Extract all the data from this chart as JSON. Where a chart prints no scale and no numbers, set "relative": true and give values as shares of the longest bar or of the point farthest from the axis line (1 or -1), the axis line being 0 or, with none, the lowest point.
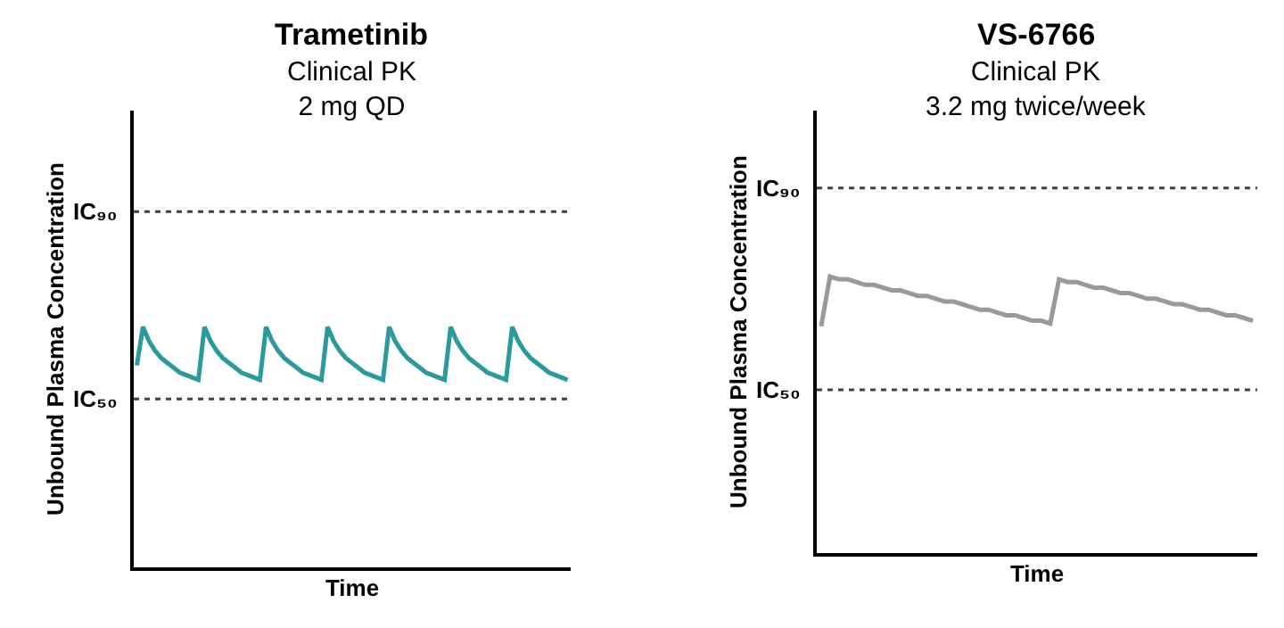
{
  "chart_data": [
    {
      "type": "line",
      "title": "Trametinib",
      "subtitle": "Clinical PK\n2 mg QD",
      "xlabel": "Time",
      "ylabel": "Unbound Plasma Concentration",
      "relative": true,
      "tick_labels": false,
      "marker": "none",
      "line_style": "solid",
      "categories": [
        null,
        null,
        null,
        null,
        null,
        null,
        null,
        null,
        null,
        null,
        null,
        null,
        null,
        null,
        null,
        null,
        null,
        null,
        null,
        null,
        null,
        null,
        null,
        null,
        null,
        null,
        null,
        null,
        null,
        null,
        null,
        null,
        null,
        null,
        null,
        null,
        null,
        null,
        null,
        null,
        null,
        null,
        null,
        null,
        null,
        null,
        null,
        null,
        null,
        null,
        null,
        null,
        null,
        null,
        null,
        null,
        null,
        null,
        null,
        null,
        null,
        null,
        null,
        null,
        null,
        null,
        null,
        null,
        null,
        null,
        null
      ],
      "series": [
        {
          "color": "#2a9a9e",
          "values": [
            0.84,
            1.0,
            0.94,
            0.9,
            0.87,
            0.85,
            0.83,
            0.81,
            0.8,
            0.79,
            0.78,
            1.0,
            0.94,
            0.9,
            0.87,
            0.85,
            0.83,
            0.81,
            0.8,
            0.79,
            0.78,
            1.0,
            0.94,
            0.9,
            0.87,
            0.85,
            0.83,
            0.81,
            0.8,
            0.79,
            0.78,
            1.0,
            0.94,
            0.9,
            0.87,
            0.85,
            0.83,
            0.81,
            0.8,
            0.79,
            0.78,
            1.0,
            0.94,
            0.9,
            0.87,
            0.85,
            0.83,
            0.81,
            0.8,
            0.79,
            0.78,
            1.0,
            0.94,
            0.9,
            0.87,
            0.85,
            0.83,
            0.81,
            0.8,
            0.79,
            0.78,
            1.0,
            0.94,
            0.9,
            0.87,
            0.85,
            0.83,
            0.81,
            0.8,
            0.79,
            0.78
          ]
        }
      ],
      "ref_lines": [
        {
          "axis": "y",
          "value": 1.48,
          "label": "IC₉₀",
          "color": "#404040",
          "line_style": "dotted"
        },
        {
          "axis": "y",
          "value": 0.7,
          "label": "IC₅₀",
          "color": "#404040",
          "line_style": "dotted"
        }
      ]
    },
    {
      "type": "line",
      "title": "VS-6766",
      "subtitle": "Clinical PK\n3.2 mg twice/week",
      "xlabel": "Time",
      "ylabel": "Unbound Plasma Concentration",
      "relative": true,
      "tick_labels": false,
      "marker": "none",
      "line_style": "solid",
      "categories": [
        null,
        null,
        null,
        null,
        null,
        null,
        null,
        null,
        null,
        null,
        null,
        null,
        null,
        null,
        null,
        null,
        null,
        null,
        null,
        null,
        null,
        null,
        null,
        null,
        null,
        null,
        null,
        null,
        null,
        null,
        null,
        null,
        null,
        null,
        null,
        null,
        null,
        null,
        null,
        null,
        null,
        null,
        null,
        null,
        null,
        null,
        null,
        null,
        null,
        null
      ],
      "series": [
        {
          "color": "#999999",
          "values": [
            0.82,
            1.0,
            0.99,
            0.99,
            0.98,
            0.97,
            0.97,
            0.96,
            0.95,
            0.95,
            0.94,
            0.93,
            0.93,
            0.92,
            0.91,
            0.91,
            0.9,
            0.89,
            0.88,
            0.88,
            0.87,
            0.86,
            0.86,
            0.85,
            0.84,
            0.84,
            0.83,
            0.99,
            0.98,
            0.98,
            0.97,
            0.96,
            0.96,
            0.95,
            0.94,
            0.94,
            0.93,
            0.92,
            0.92,
            0.91,
            0.9,
            0.9,
            0.89,
            0.88,
            0.88,
            0.87,
            0.86,
            0.86,
            0.85,
            0.84
          ]
        }
      ],
      "ref_lines": [
        {
          "axis": "y",
          "value": 1.32,
          "label": "IC₉₀",
          "color": "#404040",
          "line_style": "dotted"
        },
        {
          "axis": "y",
          "value": 0.59,
          "label": "IC₅₀",
          "color": "#404040",
          "line_style": "dotted"
        }
      ]
    }
  ]
}
